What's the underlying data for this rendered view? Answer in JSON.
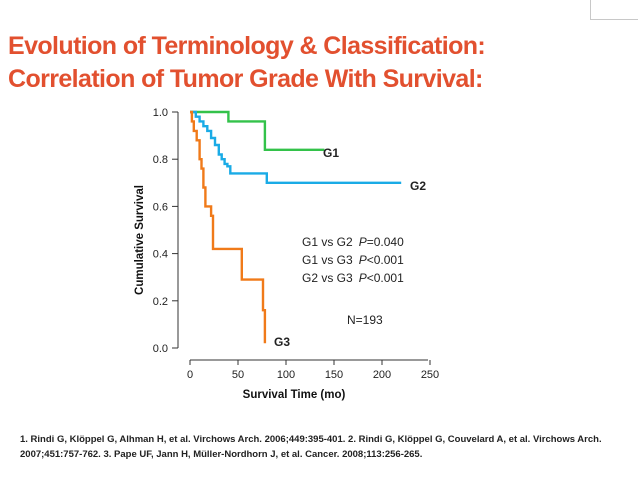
{
  "slide": {
    "title_line1": "Evolution of Terminology & Classification:",
    "title_line2": "Correlation of Tumor Grade With Survival:",
    "references": "1. Rindi G, Klöppel G, Alhman H, et al. Virchows Arch. 2006;449:395-401. 2. Rindi G, Klöppel G, Couvelard A, et al. Virchows Arch. 2007;451:757-762. 3. Pape UF, Jann H, Müller-Nordhorn J, et al. Cancer. 2008;113:256-265.",
    "title_color": "#e2502f"
  },
  "chart_data": {
    "type": "line",
    "xlabel": "Survival Time (mo)",
    "ylabel": "Cumulative Survival",
    "xlim": [
      0,
      250
    ],
    "ylim": [
      0,
      1
    ],
    "xticks": [
      0,
      50,
      100,
      150,
      200,
      250
    ],
    "yticks": [
      0.0,
      0.2,
      0.4,
      0.6,
      0.8,
      1.0
    ],
    "xtick_labels": [
      "0",
      "50",
      "100",
      "150",
      "200",
      "250"
    ],
    "ytick_labels": [
      "0.0",
      "0.2",
      "0.4",
      "0.6",
      "0.8",
      "1.0"
    ],
    "grid": false,
    "step": true,
    "series": [
      {
        "name": "G1",
        "color": "#33c24a",
        "points": [
          [
            0,
            1.0
          ],
          [
            40,
            1.0
          ],
          [
            40,
            0.96
          ],
          [
            78,
            0.96
          ],
          [
            78,
            0.84
          ],
          [
            140,
            0.84
          ]
        ]
      },
      {
        "name": "G2",
        "color": "#1aabe6",
        "points": [
          [
            0,
            1.0
          ],
          [
            6,
            1.0
          ],
          [
            6,
            0.98
          ],
          [
            10,
            0.98
          ],
          [
            10,
            0.96
          ],
          [
            14,
            0.96
          ],
          [
            14,
            0.94
          ],
          [
            18,
            0.94
          ],
          [
            18,
            0.92
          ],
          [
            22,
            0.92
          ],
          [
            22,
            0.89
          ],
          [
            26,
            0.89
          ],
          [
            26,
            0.86
          ],
          [
            30,
            0.86
          ],
          [
            30,
            0.82
          ],
          [
            33,
            0.82
          ],
          [
            33,
            0.8
          ],
          [
            36,
            0.8
          ],
          [
            36,
            0.78
          ],
          [
            39,
            0.78
          ],
          [
            39,
            0.77
          ],
          [
            42,
            0.77
          ],
          [
            42,
            0.74
          ],
          [
            80,
            0.74
          ],
          [
            80,
            0.7
          ],
          [
            220,
            0.7
          ]
        ]
      },
      {
        "name": "G3",
        "color": "#f07a19",
        "points": [
          [
            0,
            1.0
          ],
          [
            2,
            1.0
          ],
          [
            2,
            0.96
          ],
          [
            4,
            0.96
          ],
          [
            4,
            0.92
          ],
          [
            7,
            0.92
          ],
          [
            7,
            0.88
          ],
          [
            10,
            0.88
          ],
          [
            10,
            0.8
          ],
          [
            12,
            0.8
          ],
          [
            12,
            0.76
          ],
          [
            14,
            0.76
          ],
          [
            14,
            0.68
          ],
          [
            16,
            0.68
          ],
          [
            16,
            0.6
          ],
          [
            22,
            0.6
          ],
          [
            22,
            0.56
          ],
          [
            24,
            0.56
          ],
          [
            24,
            0.42
          ],
          [
            54,
            0.42
          ],
          [
            54,
            0.29
          ],
          [
            76,
            0.29
          ],
          [
            76,
            0.16
          ],
          [
            78,
            0.16
          ],
          [
            78,
            0.02
          ]
        ]
      }
    ],
    "annotations": [
      {
        "text": "G1 vs G2",
        "p_label": "P",
        "p_value": "=0.040"
      },
      {
        "text": "G1 vs G3",
        "p_label": "P",
        "p_value": "<0.001"
      },
      {
        "text": "G2 vs G3",
        "p_label": "P",
        "p_value": "<0.001"
      }
    ],
    "n_label": "N=193",
    "series_labels": [
      "G1",
      "G2",
      "G3"
    ]
  }
}
